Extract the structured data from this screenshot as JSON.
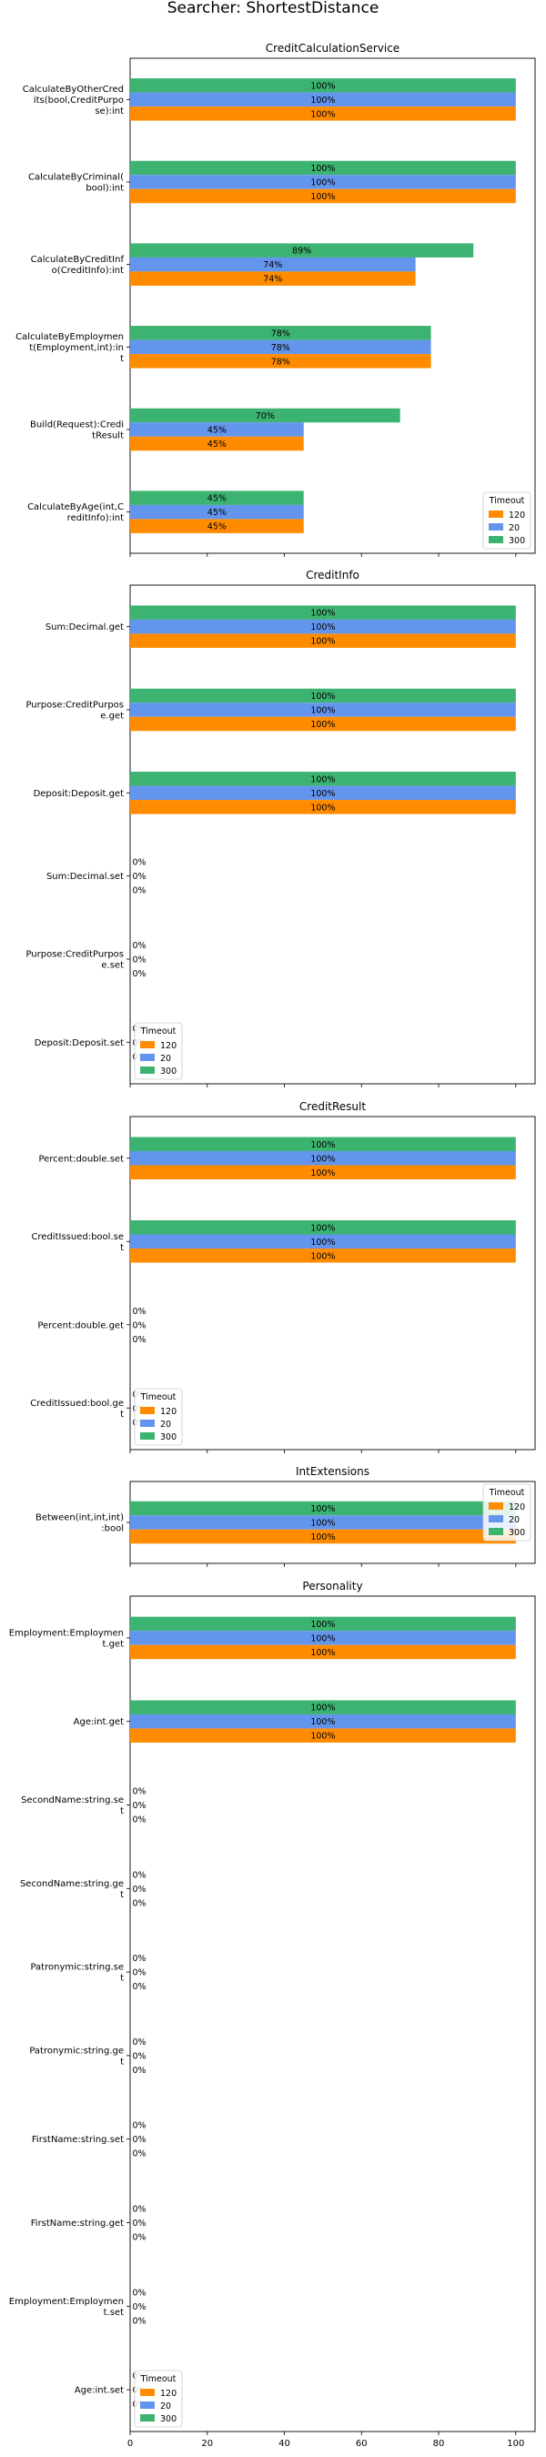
{
  "title": "Searcher: ShortestDistance",
  "chart_data": [
    {
      "type": "bar",
      "orientation": "horizontal",
      "title": "CreditCalculationService",
      "categories": [
        "CalculateByOtherCred\nits(bool,CreditPurpo\nse):int",
        "CalculateByCriminal(\nbool):int",
        "CalculateByCreditInf\no(CreditInfo):int",
        "CalculateByEmploymen\nt(Employment,int):in\nt",
        "Build(Request):Credi\ntResult",
        "CalculateByAge(int,C\nreditInfo):int"
      ],
      "series": [
        {
          "name": "120",
          "color": "#ff8c00",
          "values": [
            100,
            100,
            74,
            78,
            45,
            45
          ]
        },
        {
          "name": "20",
          "color": "#6495ed",
          "values": [
            100,
            100,
            74,
            78,
            45,
            45
          ]
        },
        {
          "name": "300",
          "color": "#3cb371",
          "values": [
            100,
            100,
            89,
            78,
            70,
            45
          ]
        }
      ],
      "xlim": [
        0,
        105
      ],
      "legend": {
        "title": "Timeout",
        "position": "lower-right"
      }
    },
    {
      "type": "bar",
      "orientation": "horizontal",
      "title": "CreditInfo",
      "categories": [
        "Sum:Decimal.get",
        "Purpose:CreditPurpos\ne.get",
        "Deposit:Deposit.get",
        "Sum:Decimal.set",
        "Purpose:CreditPurpos\ne.set",
        "Deposit:Deposit.set"
      ],
      "series": [
        {
          "name": "120",
          "color": "#ff8c00",
          "values": [
            100,
            100,
            100,
            0,
            0,
            0
          ]
        },
        {
          "name": "20",
          "color": "#6495ed",
          "values": [
            100,
            100,
            100,
            0,
            0,
            0
          ]
        },
        {
          "name": "300",
          "color": "#3cb371",
          "values": [
            100,
            100,
            100,
            0,
            0,
            0
          ]
        }
      ],
      "xlim": [
        0,
        105
      ],
      "legend": {
        "title": "Timeout",
        "position": "lower-left"
      }
    },
    {
      "type": "bar",
      "orientation": "horizontal",
      "title": "CreditResult",
      "categories": [
        "Percent:double.set",
        "CreditIssued:bool.se\nt",
        "Percent:double.get",
        "CreditIssued:bool.ge\nt"
      ],
      "series": [
        {
          "name": "120",
          "color": "#ff8c00",
          "values": [
            100,
            100,
            0,
            0
          ]
        },
        {
          "name": "20",
          "color": "#6495ed",
          "values": [
            100,
            100,
            0,
            0
          ]
        },
        {
          "name": "300",
          "color": "#3cb371",
          "values": [
            100,
            100,
            0,
            0
          ]
        }
      ],
      "xlim": [
        0,
        105
      ],
      "legend": {
        "title": "Timeout",
        "position": "lower-left"
      }
    },
    {
      "type": "bar",
      "orientation": "horizontal",
      "title": "IntExtensions",
      "categories": [
        "Between(int,int,int)\n:bool"
      ],
      "series": [
        {
          "name": "120",
          "color": "#ff8c00",
          "values": [
            100
          ]
        },
        {
          "name": "20",
          "color": "#6495ed",
          "values": [
            100
          ]
        },
        {
          "name": "300",
          "color": "#3cb371",
          "values": [
            100
          ]
        }
      ],
      "xlim": [
        0,
        105
      ],
      "legend": {
        "title": "Timeout",
        "position": "upper-right"
      }
    },
    {
      "type": "bar",
      "orientation": "horizontal",
      "title": "Personality",
      "categories": [
        "Employment:Employmen\nt.get",
        "Age:int.get",
        "SecondName:string.se\nt",
        "SecondName:string.ge\nt",
        "Patronymic:string.se\nt",
        "Patronymic:string.ge\nt",
        "FirstName:string.set",
        "FirstName:string.get",
        "Employment:Employmen\nt.set",
        "Age:int.set"
      ],
      "series": [
        {
          "name": "120",
          "color": "#ff8c00",
          "values": [
            100,
            100,
            0,
            0,
            0,
            0,
            0,
            0,
            0,
            0
          ]
        },
        {
          "name": "20",
          "color": "#6495ed",
          "values": [
            100,
            100,
            0,
            0,
            0,
            0,
            0,
            0,
            0,
            0
          ]
        },
        {
          "name": "300",
          "color": "#3cb371",
          "values": [
            100,
            100,
            0,
            0,
            0,
            0,
            0,
            0,
            0,
            0
          ]
        }
      ],
      "xlim": [
        0,
        105
      ],
      "xticks": [
        0,
        20,
        40,
        60,
        80,
        100
      ],
      "legend": {
        "title": "Timeout",
        "position": "lower-left"
      }
    }
  ]
}
